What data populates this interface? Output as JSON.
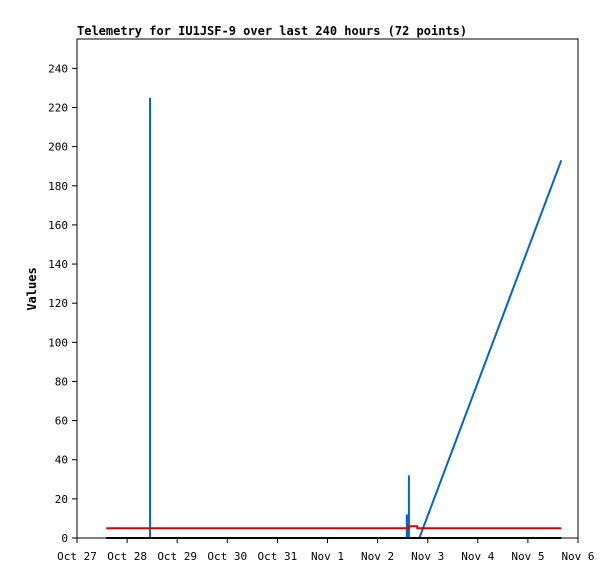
{
  "chart_data": {
    "type": "line",
    "title": "Telemetry for IU1JSF-9 over last 240 hours (72 points)",
    "xlabel": "",
    "ylabel": "Values",
    "x_ticks": [
      "Oct 27",
      "Oct 28",
      "Oct 29",
      "Oct 30",
      "Oct 31",
      "Nov 1",
      "Nov 2",
      "Nov 3",
      "Nov 4",
      "Nov 5",
      "Nov 6"
    ],
    "xlim": [
      "2023-10-27T00:00",
      "2023-11-06T00:00"
    ],
    "ylim": [
      0,
      255
    ],
    "y_ticks": [
      0,
      20,
      40,
      60,
      80,
      100,
      120,
      140,
      160,
      180,
      200,
      220,
      240
    ],
    "grid": false,
    "legend": false,
    "series": [
      {
        "color": "#0066cc",
        "points": [
          {
            "x": "2023-10-27T14:00",
            "y": 0
          },
          {
            "x": "2023-10-28T11:00",
            "y": 0
          },
          {
            "x": "2023-10-28T11:00",
            "y": 225
          },
          {
            "x": "2023-10-28T11:00",
            "y": 0
          },
          {
            "x": "2023-11-02T14:00",
            "y": 0
          },
          {
            "x": "2023-11-02T14:00",
            "y": 12
          },
          {
            "x": "2023-11-02T15:00",
            "y": 0
          },
          {
            "x": "2023-11-02T15:00",
            "y": 32
          },
          {
            "x": "2023-11-02T15:00",
            "y": 0
          },
          {
            "x": "2023-11-02T20:00",
            "y": 0
          },
          {
            "x": "2023-11-05T16:00",
            "y": 193
          }
        ]
      },
      {
        "color": "#dd0000",
        "points": [
          {
            "x": "2023-10-27T14:00",
            "y": 5
          },
          {
            "x": "2023-11-02T15:00",
            "y": 5
          },
          {
            "x": "2023-11-02T15:00",
            "y": 6
          },
          {
            "x": "2023-11-02T19:00",
            "y": 6
          },
          {
            "x": "2023-11-02T19:00",
            "y": 5
          },
          {
            "x": "2023-11-05T16:00",
            "y": 5
          }
        ]
      },
      {
        "color": "#000000",
        "points": [
          {
            "x": "2023-10-27T14:00",
            "y": 0
          },
          {
            "x": "2023-11-05T16:00",
            "y": 0
          }
        ]
      }
    ]
  }
}
